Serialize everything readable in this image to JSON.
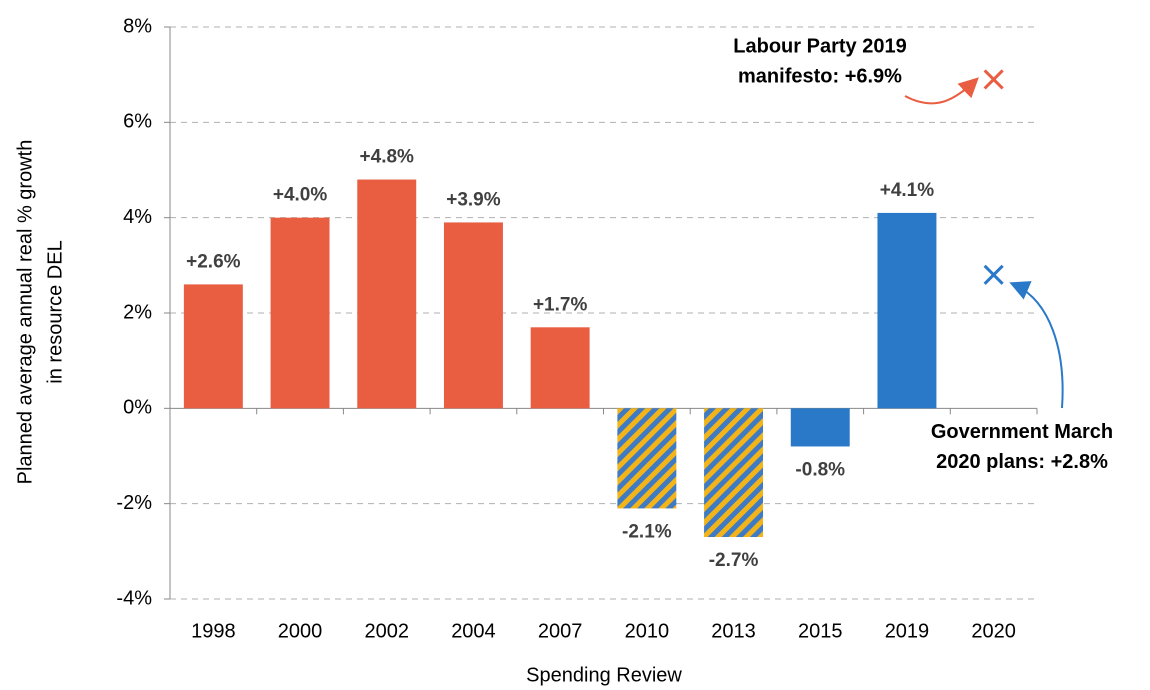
{
  "chart_data": {
    "type": "bar",
    "x_label": "Spending Review",
    "y_label": [
      "Planned average annual real % growth",
      "in resource DEL"
    ],
    "categories": [
      "1998",
      "2000",
      "2002",
      "2004",
      "2007",
      "2010",
      "2013",
      "2015",
      "2019",
      "2020"
    ],
    "values": [
      2.6,
      4.0,
      4.8,
      3.9,
      1.7,
      -2.1,
      -2.7,
      -0.8,
      4.1,
      null
    ],
    "value_labels": [
      "+2.6%",
      "+4.0%",
      "+4.8%",
      "+3.9%",
      "+1.7%",
      "-2.1%",
      "-2.7%",
      "-0.8%",
      "+4.1%",
      null
    ],
    "colors": [
      "#e95e40",
      "#e95e40",
      "#e95e40",
      "#e95e40",
      "#e95e40",
      "#f2b418",
      "#f2b418",
      "#2a79c9",
      "#2a79c9",
      null
    ],
    "hatched": [
      false,
      false,
      false,
      false,
      false,
      true,
      true,
      false,
      false,
      false
    ],
    "hatch_color": "#3f7bc4",
    "markers": [
      {
        "category": 9,
        "value": 6.9,
        "color": "#e95e40",
        "label": [
          "Labour Party 2019",
          "manifesto: +6.9%"
        ]
      },
      {
        "category": 9,
        "value": 2.8,
        "color": "#2a79c9",
        "label": [
          "Government March",
          "2020 plans: +2.8%"
        ]
      }
    ],
    "ylim": [
      -4,
      8
    ],
    "yticks": [
      {
        "value": -4,
        "label": "-4%"
      },
      {
        "value": -2,
        "label": "-2%"
      },
      {
        "value": 0,
        "label": "0%"
      },
      {
        "value": 2,
        "label": "2%"
      },
      {
        "value": 4,
        "label": "4%"
      },
      {
        "value": 6,
        "label": "6%"
      },
      {
        "value": 8,
        "label": "8%"
      }
    ],
    "grid": true
  }
}
